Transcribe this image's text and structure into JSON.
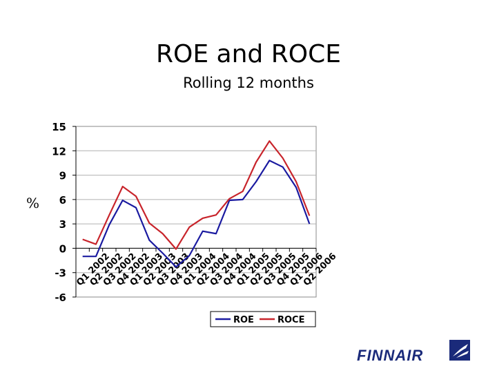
{
  "chart_data": {
    "type": "line",
    "title": "ROE and ROCE",
    "subtitle": "Rolling 12 months",
    "ylabel": "%",
    "xlabel": "",
    "ylim": [
      -6,
      15
    ],
    "yticks": [
      15,
      12,
      9,
      6,
      3,
      0,
      -3,
      -6
    ],
    "categories": [
      "Q1 2002",
      "Q2 2002",
      "Q3 2002",
      "Q4 2002",
      "Q1 2003",
      "Q2 2003",
      "Q3 2003",
      "Q4 2003",
      "Q1 2004",
      "Q2 2004",
      "Q3 2004",
      "Q4 2004",
      "Q1 2005",
      "Q2 2005",
      "Q3 2005",
      "Q4 2005",
      "Q1 2006",
      "Q2 2006"
    ],
    "series": [
      {
        "name": "ROE",
        "color": "#1a1aa0",
        "values": [
          -1.0,
          -1.0,
          2.9,
          5.9,
          5.0,
          1.0,
          -0.6,
          -2.3,
          -0.9,
          2.1,
          1.8,
          5.9,
          6.0,
          8.2,
          10.8,
          10.0,
          7.5,
          3.0
        ]
      },
      {
        "name": "ROCE",
        "color": "#c8242b",
        "values": [
          1.1,
          0.5,
          4.1,
          7.6,
          6.4,
          3.1,
          1.8,
          -0.1,
          2.6,
          3.7,
          4.1,
          6.1,
          7.0,
          10.6,
          13.2,
          11.1,
          8.2,
          4.0
        ]
      }
    ],
    "grid": true,
    "legend_position": "bottom"
  },
  "brand": {
    "logo_text": "FINNAIR",
    "logo_color": "#1a2a7a"
  }
}
